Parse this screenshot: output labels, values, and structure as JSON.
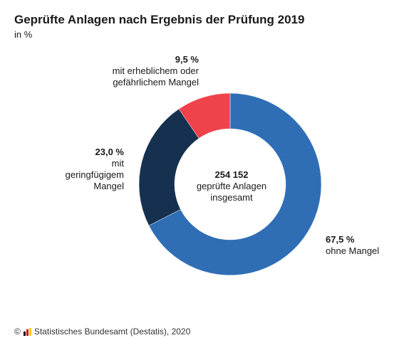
{
  "header": {
    "title": "Geprüfte Anlagen nach Ergebnis der Prüfung 2019",
    "subtitle": "in %"
  },
  "chart_data": {
    "type": "pie",
    "variant": "donut",
    "title": "Geprüfte Anlagen nach Ergebnis der Prüfung 2019",
    "unit": "in %",
    "slices": [
      {
        "value_label": "67,5 %",
        "label": "ohne Mangel",
        "value": 67.5,
        "color": "#2f6eb5"
      },
      {
        "value_label": "23,0 %",
        "label": "mit\ngeringfügigem\nMangel",
        "value": 23.0,
        "color": "#16304f"
      },
      {
        "value_label": "9,5 %",
        "label": "mit erheblichem oder\ngefährlichem Mangel",
        "value": 9.5,
        "color": "#f0424a"
      }
    ],
    "center": {
      "value": "254 152",
      "label": "geprüfte Anlagen\ninsgesamt"
    }
  },
  "footer": {
    "copyright": "©",
    "source": "Statistisches Bundesamt (Destatis), 2020",
    "logo_colors": [
      "#000000",
      "#d00000",
      "#ffcc00"
    ]
  }
}
